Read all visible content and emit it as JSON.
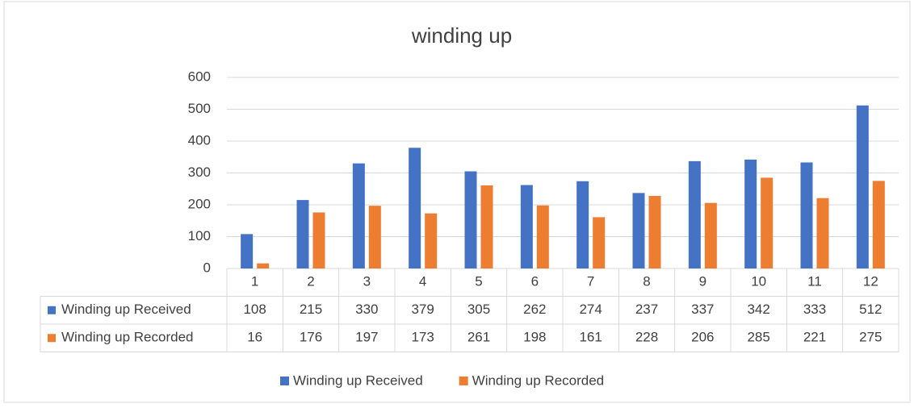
{
  "chart_data": {
    "type": "bar",
    "title": "winding up",
    "categories": [
      1,
      2,
      3,
      4,
      5,
      6,
      7,
      8,
      9,
      10,
      11,
      12
    ],
    "series": [
      {
        "name": "Winding up Received",
        "color": "#4472c4",
        "values": [
          108,
          215,
          330,
          379,
          305,
          262,
          274,
          237,
          337,
          342,
          333,
          512
        ]
      },
      {
        "name": "Winding up Recorded",
        "color": "#ed7d31",
        "values": [
          16,
          176,
          197,
          173,
          261,
          198,
          161,
          228,
          206,
          285,
          221,
          275
        ]
      }
    ],
    "ylim": [
      0,
      600
    ],
    "yticks": [
      0,
      100,
      200,
      300,
      400,
      500,
      600
    ],
    "grid": true,
    "legend": "bottom"
  }
}
